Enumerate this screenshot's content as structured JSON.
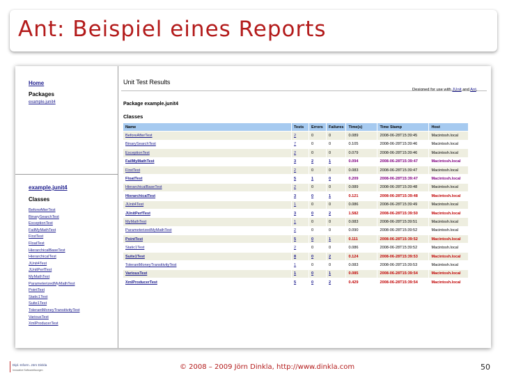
{
  "slide": {
    "title": "Ant: Beispiel eines Reports",
    "copyright": "© 2008 – 2009 Jörn Dinkla, http://www.dinkla.com",
    "page_number": "50",
    "logo_line1": "Dipl.-Inform. Jörn Dinkla",
    "logo_line2": "Innovative Softwarelösungen"
  },
  "nav": {
    "home": "Home",
    "packages_heading": "Packages",
    "package_link": "example.junit4",
    "package_title": "example.junit4",
    "classes_heading": "Classes",
    "classes": [
      "BeforeAfterTest",
      "BinarySearchTest",
      "ExceptionTest",
      "FailMyMathTest",
      "FirstTest",
      "FloatTest",
      "HierarchicalBaseTest",
      "HierarchicalTest",
      "JUnit4Test",
      "JUnitPerfTest",
      "MyMathTest",
      "ParameterizedMyMathTest",
      "PointTest",
      "Static1Test",
      "Suite1Test",
      "TolerantMoneyTransitivityTest",
      "VariousTest",
      "XmlProducerTest"
    ]
  },
  "main": {
    "heading": "Unit Test Results",
    "designed_prefix": "Designed for use with ",
    "designed_link1": "JUnit",
    "designed_and": " and ",
    "designed_link2": "Ant",
    "designed_suffix": ".",
    "package_heading": "Package example.junit4",
    "classes_heading": "Classes",
    "columns": [
      "Name",
      "Tests",
      "Errors",
      "Failures",
      "Time(s)",
      "Time Stamp",
      "Host"
    ],
    "rows": [
      {
        "name": "BeforeAfterTest",
        "tests": "2",
        "errors": "0",
        "failures": "0",
        "time": "0.089",
        "stamp": "2008-06-28T15:39:45",
        "host": "Macintosh.local"
      },
      {
        "name": "BinarySearchTest",
        "tests": "7",
        "errors": "0",
        "failures": "0",
        "time": "0.105",
        "stamp": "2008-06-28T15:39:46",
        "host": "Macintosh.local"
      },
      {
        "name": "ExceptionTest",
        "tests": "2",
        "errors": "0",
        "failures": "0",
        "time": "0.079",
        "stamp": "2008-06-28T15:39:46",
        "host": "Macintosh.local"
      },
      {
        "name": "FailMyMathTest",
        "tests": "3",
        "errors": "2",
        "failures": "1",
        "time": "0.094",
        "stamp": "2008-06-28T15:39:47",
        "host": "Macintosh.local"
      },
      {
        "name": "FirstTest",
        "tests": "2",
        "errors": "0",
        "failures": "0",
        "time": "0.083",
        "stamp": "2008-06-28T15:39:47",
        "host": "Macintosh.local"
      },
      {
        "name": "FloatTest",
        "tests": "5",
        "errors": "1",
        "failures": "0",
        "time": "0.209",
        "stamp": "2008-06-28T15:39:47",
        "host": "Macintosh.local"
      },
      {
        "name": "HierarchicalBaseTest",
        "tests": "2",
        "errors": "0",
        "failures": "0",
        "time": "0.089",
        "stamp": "2008-06-28T15:39:48",
        "host": "Macintosh.local"
      },
      {
        "name": "HierarchicalTest",
        "tests": "3",
        "errors": "0",
        "failures": "1",
        "time": "0.121",
        "stamp": "2008-06-28T15:39:48",
        "host": "Macintosh.local"
      },
      {
        "name": "JUnit4Test",
        "tests": "1",
        "errors": "0",
        "failures": "0",
        "time": "0.086",
        "stamp": "2008-06-28T15:39:49",
        "host": "Macintosh.local"
      },
      {
        "name": "JUnitPerfTest",
        "tests": "3",
        "errors": "0",
        "failures": "2",
        "time": "1.582",
        "stamp": "2008-06-28T15:39:50",
        "host": "Macintosh.local"
      },
      {
        "name": "MyMathTest",
        "tests": "1",
        "errors": "0",
        "failures": "0",
        "time": "0.083",
        "stamp": "2008-06-28T15:39:51",
        "host": "Macintosh.local"
      },
      {
        "name": "ParameterizedMyMathTest",
        "tests": "2",
        "errors": "0",
        "failures": "0",
        "time": "0.090",
        "stamp": "2008-06-28T15:39:52",
        "host": "Macintosh.local"
      },
      {
        "name": "PointTest",
        "tests": "5",
        "errors": "0",
        "failures": "1",
        "time": "0.111",
        "stamp": "2008-06-28T15:39:52",
        "host": "Macintosh.local"
      },
      {
        "name": "Static1Test",
        "tests": "2",
        "errors": "0",
        "failures": "0",
        "time": "0.086",
        "stamp": "2008-06-28T15:39:52",
        "host": "Macintosh.local"
      },
      {
        "name": "Suite1Test",
        "tests": "8",
        "errors": "0",
        "failures": "2",
        "time": "0.124",
        "stamp": "2008-06-28T15:39:53",
        "host": "Macintosh.local"
      },
      {
        "name": "TolerantMoneyTransitivityTest",
        "tests": "1",
        "errors": "0",
        "failures": "0",
        "time": "0.083",
        "stamp": "2008-06-28T15:39:53",
        "host": "Macintosh.local"
      },
      {
        "name": "VariousTest",
        "tests": "1",
        "errors": "0",
        "failures": "1",
        "time": "0.085",
        "stamp": "2008-06-28T15:39:54",
        "host": "Macintosh.local"
      },
      {
        "name": "XmlProducerTest",
        "tests": "5",
        "errors": "0",
        "failures": "2",
        "time": "0.429",
        "stamp": "2008-06-28T15:39:54",
        "host": "Macintosh.local"
      }
    ]
  },
  "colors": {
    "title_red": "#b31b1b",
    "header_blue": "#a6caf0",
    "fail_red": "#c00000",
    "error_purple": "#800080",
    "link_blue": "#1a1a8c"
  }
}
